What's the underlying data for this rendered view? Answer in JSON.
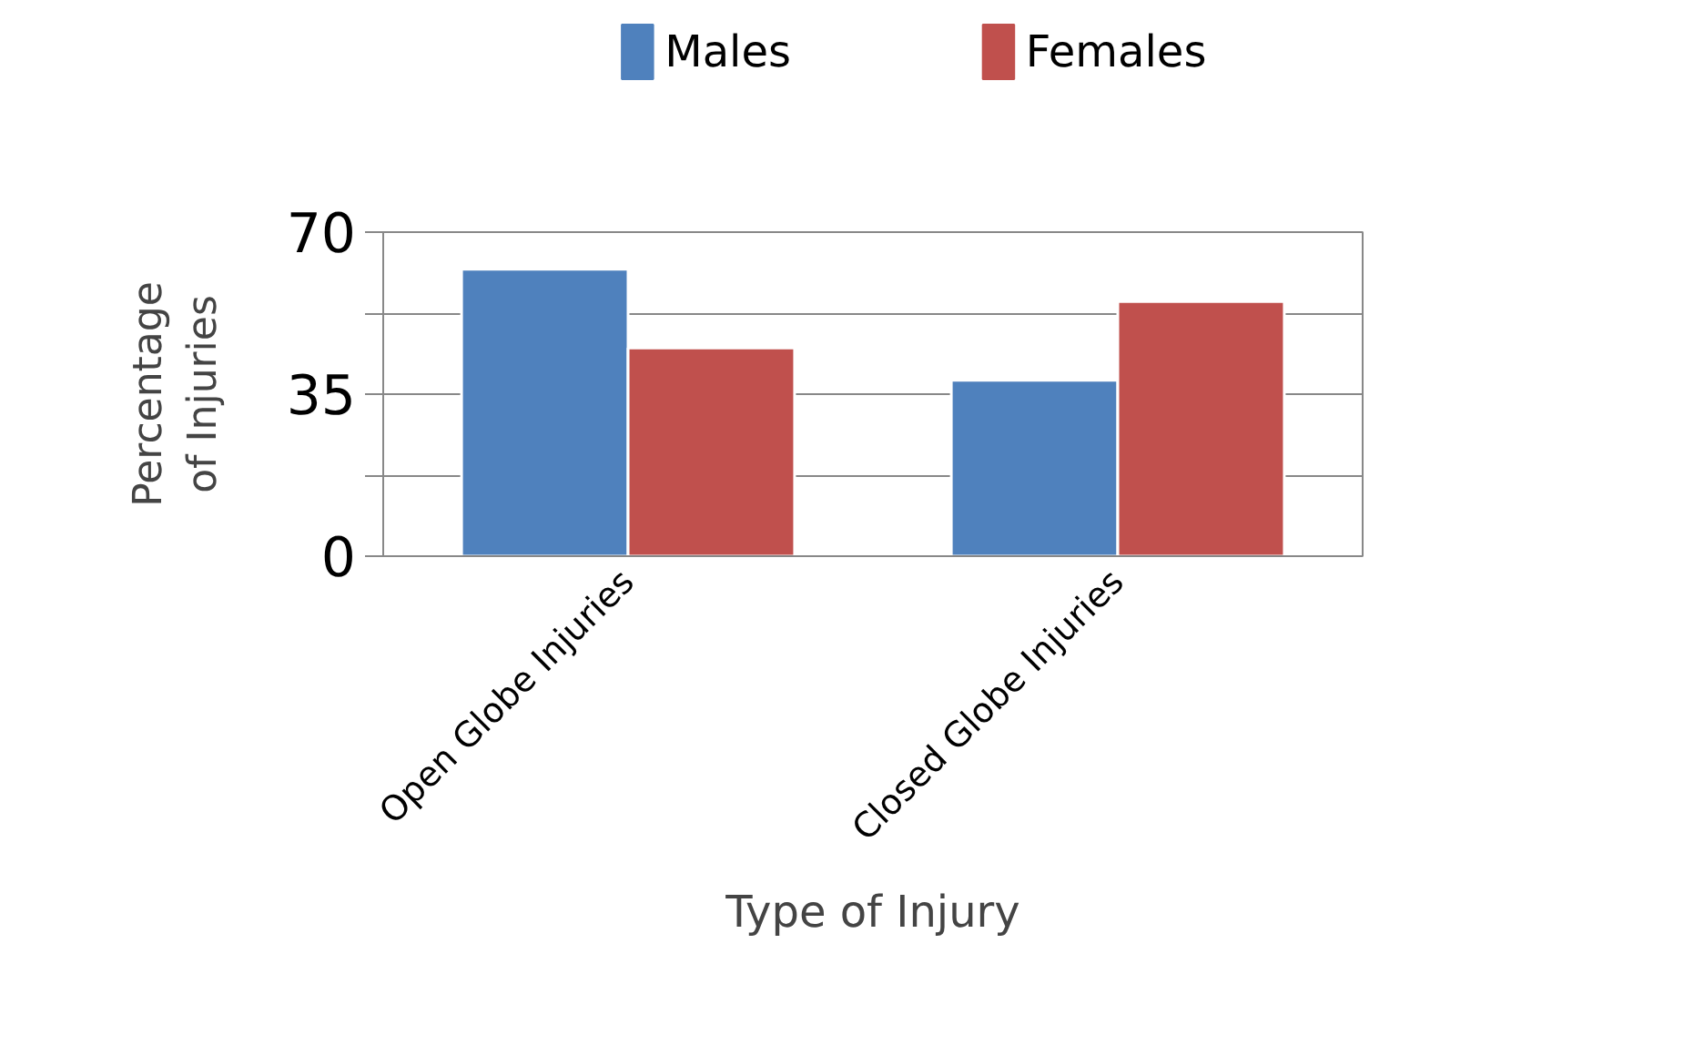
{
  "chart_data": {
    "type": "bar",
    "xlabel": "Type of Injury",
    "ylabel": "Percentage of Injuries",
    "categories": [
      "Open Globe Injuries",
      "Closed Globe Injuries"
    ],
    "series": [
      {
        "name": "Males",
        "color": "#4f81bd",
        "values": [
          62,
          38
        ]
      },
      {
        "name": "Females",
        "color": "#c0504d",
        "values": [
          45,
          55
        ]
      }
    ],
    "ylim": [
      0,
      70
    ],
    "yticks": [
      0,
      {
        "value": 17.5,
        "label": null
      },
      35,
      {
        "value": 52.5,
        "label": null
      },
      70
    ],
    "grid": "y",
    "legend": "top"
  }
}
